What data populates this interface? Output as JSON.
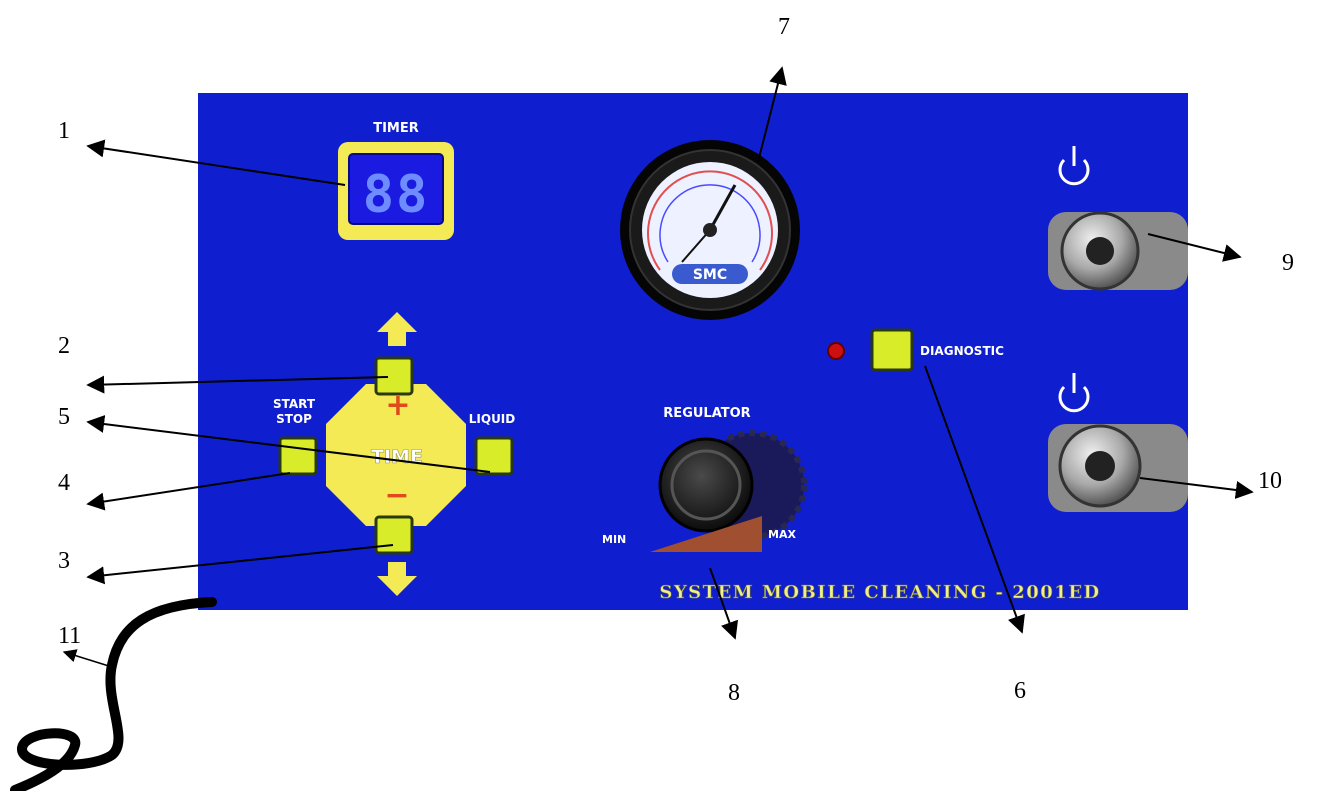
{
  "panel": {
    "colors": {
      "panel": "#0f1fd0",
      "yellow": "#f4ea55",
      "button": "#d8ec2a",
      "led": "#cc1010"
    },
    "timer_label": "TIMER",
    "timer_display": "88",
    "time_label": "TIME",
    "plus_sign": "+",
    "minus_sign": "−",
    "start_stop_line1": "START",
    "start_stop_line2": "STOP",
    "liquid_label": "LIQUID",
    "diagnostic_label": "DIAGNOSTIC",
    "regulator_label": "REGULATOR",
    "min_label": "MIN",
    "max_label": "MAX",
    "gauge_brand": "SMC",
    "footer_title": "SYSTEM  MOBILE  CLEANING - 2001ED",
    "icons": [
      "arrow-up-icon",
      "arrow-down-icon",
      "power-icon",
      "power-icon"
    ]
  },
  "callouts": [
    "1",
    "2",
    "3",
    "4",
    "5",
    "6",
    "7",
    "8",
    "9",
    "10",
    "11"
  ]
}
